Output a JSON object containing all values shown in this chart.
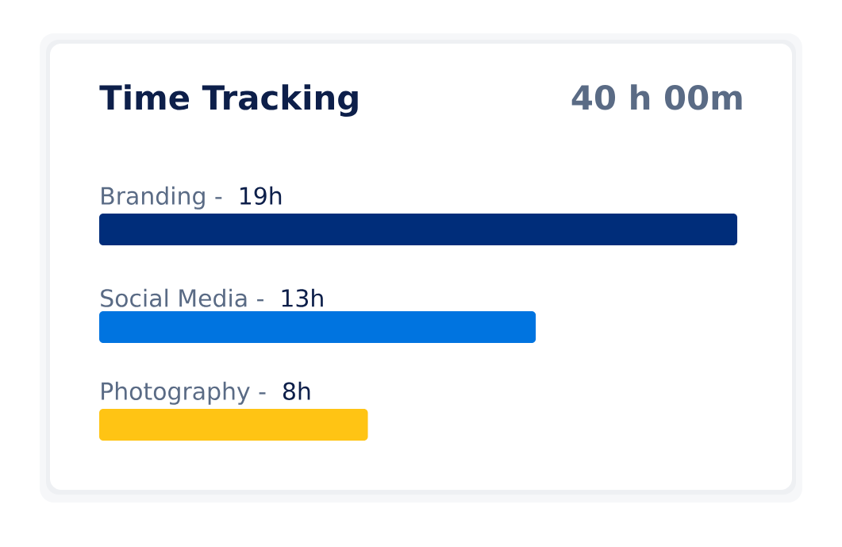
{
  "chart_data": {
    "type": "bar",
    "orientation": "horizontal",
    "title": "Time Tracking",
    "annotations": [
      "40 h 00m"
    ],
    "categories": [
      "Branding -",
      "Social Media -",
      "Photography -"
    ],
    "values": [
      19,
      13,
      8
    ],
    "value_labels": [
      "19h",
      "13h",
      "8h"
    ],
    "colors": [
      "#002d7a",
      "#0074e0",
      "#ffc414"
    ]
  }
}
